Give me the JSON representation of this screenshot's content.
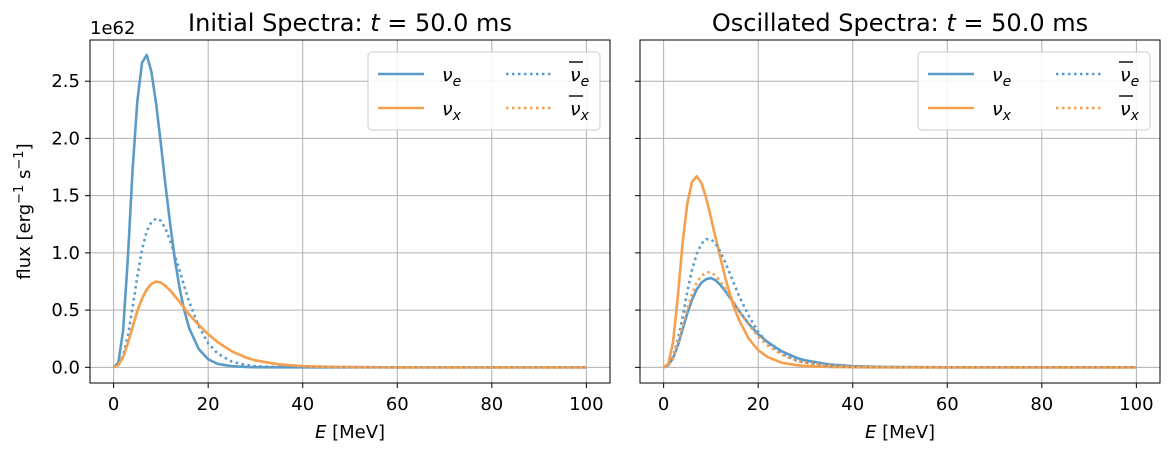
{
  "chart_data": [
    {
      "type": "line",
      "title": "Initial Spectra: t = 50.0 ms",
      "title_parts": {
        "prefix": "Initial Spectra: ",
        "var": "t",
        "suffix": " = 50.0 ms"
      },
      "xlabel": "E [MeV]",
      "xlabel_parts": {
        "var": "E",
        "unit": " [MeV]"
      },
      "ylabel": "flux [erg⁻¹ s⁻¹]",
      "y_offset_text": "1e62",
      "xlim": [
        -5,
        105
      ],
      "ylim": [
        -0.137,
        2.86
      ],
      "x_ticks": [
        0,
        20,
        40,
        60,
        80,
        100
      ],
      "y_ticks": [
        0.0,
        0.5,
        1.0,
        1.5,
        2.0,
        2.5
      ],
      "y_tick_labels": [
        "0.0",
        "0.5",
        "1.0",
        "1.5",
        "2.0",
        "2.5"
      ],
      "grid": true,
      "legend": {
        "placement": "top-right",
        "columns": 2
      },
      "series": [
        {
          "name": "νe",
          "symbol": "ν",
          "sub": "e",
          "bar": false,
          "color": "#5b9bc8",
          "dash": "solid",
          "x": [
            0,
            1,
            2,
            3,
            4,
            5,
            6,
            7,
            8,
            9,
            10,
            11,
            12,
            13,
            14,
            15,
            16,
            18,
            20,
            22,
            25,
            28,
            30,
            35,
            40,
            45,
            50,
            60,
            70,
            80,
            90,
            100
          ],
          "y": [
            0,
            0.04,
            0.32,
            0.95,
            1.72,
            2.32,
            2.66,
            2.73,
            2.58,
            2.3,
            1.95,
            1.58,
            1.24,
            0.93,
            0.68,
            0.49,
            0.34,
            0.16,
            0.07,
            0.03,
            0.01,
            0.003,
            0.001,
            0,
            0,
            0,
            0,
            0,
            0,
            0,
            0,
            0
          ]
        },
        {
          "name": "νx",
          "symbol": "ν",
          "sub": "x",
          "bar": false,
          "color": "#f6a04f",
          "dash": "solid",
          "x": [
            0,
            1,
            2,
            3,
            4,
            5,
            6,
            7,
            8,
            9,
            10,
            11,
            12,
            14,
            16,
            18,
            20,
            22,
            25,
            28,
            30,
            35,
            40,
            45,
            50,
            60,
            70,
            80,
            90,
            100
          ],
          "y": [
            0,
            0.02,
            0.09,
            0.21,
            0.35,
            0.49,
            0.6,
            0.68,
            0.73,
            0.75,
            0.74,
            0.71,
            0.67,
            0.57,
            0.46,
            0.37,
            0.29,
            0.22,
            0.14,
            0.085,
            0.06,
            0.025,
            0.01,
            0.004,
            0.002,
            0,
            0,
            0,
            0,
            0
          ]
        },
        {
          "name": "ν̄e",
          "symbol": "ν",
          "sub": "e",
          "bar": true,
          "color": "#5b9bc8",
          "dash": "dotted",
          "x": [
            0,
            1,
            2,
            3,
            4,
            5,
            6,
            7,
            8,
            9,
            10,
            11,
            12,
            13,
            14,
            15,
            16,
            18,
            20,
            22,
            25,
            28,
            30,
            35,
            40,
            45,
            50,
            60,
            70,
            80,
            90,
            100
          ],
          "y": [
            0,
            0.02,
            0.1,
            0.27,
            0.52,
            0.79,
            1.03,
            1.19,
            1.27,
            1.3,
            1.28,
            1.21,
            1.1,
            0.97,
            0.84,
            0.7,
            0.57,
            0.36,
            0.21,
            0.12,
            0.05,
            0.02,
            0.01,
            0.002,
            0,
            0,
            0,
            0,
            0,
            0,
            0,
            0
          ]
        },
        {
          "name": "ν̄x",
          "symbol": "ν",
          "sub": "x",
          "bar": true,
          "color": "#f6a04f",
          "dash": "dotted",
          "x": [
            0,
            1,
            2,
            3,
            4,
            5,
            6,
            7,
            8,
            9,
            10,
            11,
            12,
            14,
            16,
            18,
            20,
            22,
            25,
            28,
            30,
            35,
            40,
            45,
            50,
            60,
            70,
            80,
            90,
            100
          ],
          "y": [
            0,
            0.02,
            0.09,
            0.21,
            0.35,
            0.49,
            0.6,
            0.68,
            0.73,
            0.75,
            0.74,
            0.71,
            0.67,
            0.57,
            0.46,
            0.37,
            0.29,
            0.22,
            0.14,
            0.085,
            0.06,
            0.025,
            0.01,
            0.004,
            0.002,
            0,
            0,
            0,
            0,
            0
          ]
        }
      ]
    },
    {
      "type": "line",
      "title": "Oscillated Spectra: t = 50.0 ms",
      "title_parts": {
        "prefix": "Oscillated Spectra: ",
        "var": "t",
        "suffix": " = 50.0 ms"
      },
      "xlabel": "E [MeV]",
      "xlabel_parts": {
        "var": "E",
        "unit": " [MeV]"
      },
      "xlim": [
        -5,
        105
      ],
      "ylim": [
        -0.137,
        2.86
      ],
      "x_ticks": [
        0,
        20,
        40,
        60,
        80,
        100
      ],
      "grid": true,
      "shared_y": true,
      "legend": {
        "placement": "top-right",
        "columns": 2
      },
      "series": [
        {
          "name": "νe",
          "symbol": "ν",
          "sub": "e",
          "bar": false,
          "color": "#5b9bc8",
          "dash": "solid",
          "x": [
            0,
            1,
            2,
            3,
            4,
            5,
            6,
            7,
            8,
            9,
            10,
            11,
            12,
            13,
            14,
            15,
            16,
            18,
            20,
            22,
            25,
            28,
            30,
            35,
            40,
            45,
            50,
            60,
            70,
            80,
            90,
            100
          ],
          "y": [
            0,
            0.02,
            0.08,
            0.19,
            0.33,
            0.47,
            0.59,
            0.68,
            0.74,
            0.77,
            0.78,
            0.76,
            0.72,
            0.67,
            0.61,
            0.55,
            0.49,
            0.38,
            0.29,
            0.22,
            0.14,
            0.085,
            0.06,
            0.025,
            0.01,
            0.004,
            0.002,
            0,
            0,
            0,
            0,
            0
          ]
        },
        {
          "name": "νx",
          "symbol": "ν",
          "sub": "x",
          "bar": false,
          "color": "#f6a04f",
          "dash": "solid",
          "x": [
            0,
            1,
            2,
            3,
            4,
            5,
            6,
            7,
            8,
            9,
            10,
            11,
            12,
            13,
            14,
            15,
            16,
            18,
            20,
            22,
            25,
            28,
            30,
            35,
            40,
            45,
            50,
            60,
            70,
            80,
            90,
            100
          ],
          "y": [
            0,
            0.03,
            0.22,
            0.62,
            1.08,
            1.43,
            1.62,
            1.67,
            1.61,
            1.48,
            1.31,
            1.13,
            0.96,
            0.79,
            0.64,
            0.51,
            0.41,
            0.25,
            0.15,
            0.09,
            0.04,
            0.02,
            0.01,
            0.003,
            0.001,
            0,
            0,
            0,
            0,
            0,
            0,
            0
          ]
        },
        {
          "name": "ν̄e",
          "symbol": "ν",
          "sub": "e",
          "bar": true,
          "color": "#5b9bc8",
          "dash": "dotted",
          "x": [
            0,
            1,
            2,
            3,
            4,
            5,
            6,
            7,
            8,
            9,
            10,
            11,
            12,
            13,
            14,
            15,
            16,
            18,
            20,
            22,
            25,
            28,
            30,
            35,
            40,
            45,
            50,
            60,
            70,
            80,
            90,
            100
          ],
          "y": [
            0,
            0.02,
            0.09,
            0.24,
            0.44,
            0.66,
            0.85,
            0.99,
            1.08,
            1.12,
            1.12,
            1.08,
            1.01,
            0.92,
            0.82,
            0.72,
            0.62,
            0.45,
            0.31,
            0.21,
            0.12,
            0.06,
            0.04,
            0.01,
            0.004,
            0.001,
            0,
            0,
            0,
            0,
            0,
            0
          ]
        },
        {
          "name": "ν̄x",
          "symbol": "ν",
          "sub": "x",
          "bar": true,
          "color": "#f6a04f",
          "dash": "dotted",
          "x": [
            0,
            1,
            2,
            3,
            4,
            5,
            6,
            7,
            8,
            9,
            10,
            11,
            12,
            13,
            14,
            15,
            16,
            18,
            20,
            22,
            25,
            28,
            30,
            35,
            40,
            45,
            50,
            60,
            70,
            80,
            90,
            100
          ],
          "y": [
            0,
            0.02,
            0.08,
            0.2,
            0.36,
            0.51,
            0.64,
            0.74,
            0.8,
            0.83,
            0.83,
            0.8,
            0.75,
            0.69,
            0.63,
            0.56,
            0.49,
            0.37,
            0.27,
            0.19,
            0.11,
            0.06,
            0.04,
            0.015,
            0.005,
            0.002,
            0,
            0,
            0,
            0,
            0,
            0
          ]
        }
      ]
    }
  ]
}
